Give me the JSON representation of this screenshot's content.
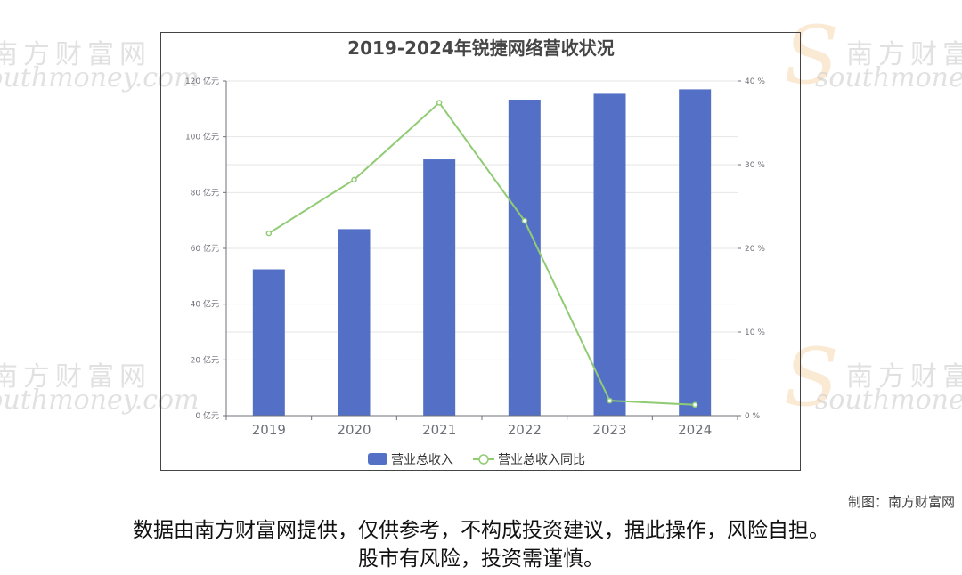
{
  "watermark": {
    "cn": "南方财富网",
    "en": "southmoney.com"
  },
  "credit": "制图：南方财富网",
  "disclaimer": {
    "line1": "数据由南方财富网提供，仅供参考，不构成投资建议，据此操作，风险自担。",
    "line2": "股市有风险，投资需谨慎。"
  },
  "chart_data": {
    "type": "bar",
    "title": "2019-2024年锐捷网络营收状况",
    "categories": [
      "2019",
      "2020",
      "2021",
      "2022",
      "2023",
      "2024"
    ],
    "series": [
      {
        "name": "营业总收入",
        "type": "bar",
        "axis": "left",
        "color": "#5470c6",
        "values": [
          52.5,
          66.9,
          91.9,
          113.3,
          115.4,
          117.0
        ]
      },
      {
        "name": "营业总收入同比",
        "type": "line",
        "axis": "right",
        "color": "#91cc75",
        "values": [
          21.8,
          28.2,
          37.4,
          23.3,
          1.8,
          1.3
        ]
      }
    ],
    "y_left": {
      "min": 0,
      "max": 120,
      "ticks": [
        0,
        20,
        40,
        60,
        80,
        100,
        120
      ],
      "unit": "亿元"
    },
    "y_right": {
      "min": 0,
      "max": 40,
      "ticks": [
        0,
        10,
        20,
        30,
        40
      ],
      "unit": "%"
    },
    "legend_position": "bottom-center",
    "grid": true
  }
}
